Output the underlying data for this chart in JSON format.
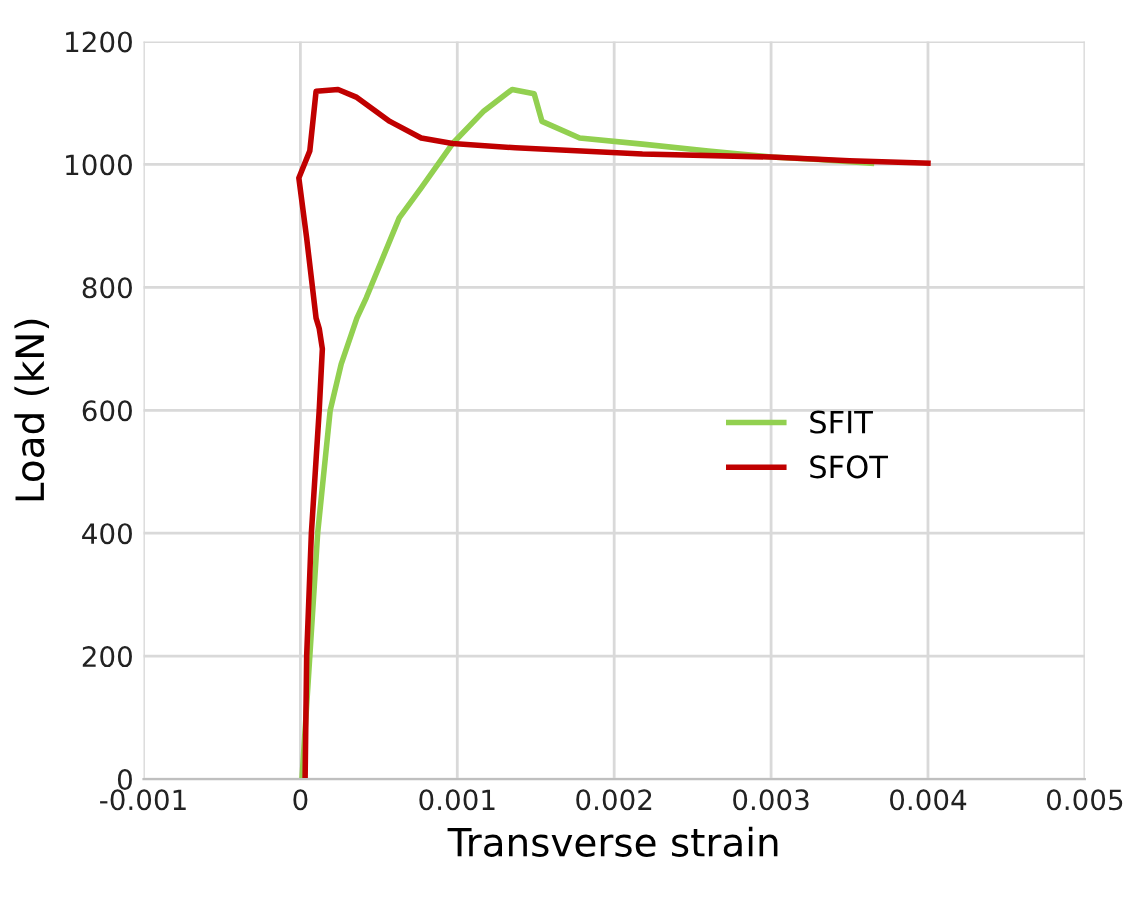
{
  "chart_data": {
    "type": "line",
    "xlabel": "Transverse strain",
    "ylabel": "Load (kN)",
    "xlim": [
      -0.001,
      0.005
    ],
    "xticks": [
      -0.001,
      0,
      0.001,
      0.002,
      0.003,
      0.004,
      0.005
    ],
    "ylim": [
      0,
      1200
    ],
    "yticks": [
      0,
      200,
      400,
      600,
      800,
      1000,
      1200
    ],
    "grid": true,
    "legend": "right",
    "marker": "none",
    "line_style": "solid",
    "series": [
      {
        "name": "SFIT",
        "color": "#92d050",
        "x": [
          1e-05,
          6e-05,
          0.00011,
          0.00019,
          0.00026,
          0.00036,
          0.00042,
          0.00063,
          0.00077,
          0.00097,
          0.00117,
          0.00135,
          0.00149,
          0.00154,
          0.00178,
          0.00218,
          0.0026,
          0.003,
          0.0033,
          0.00364
        ],
        "values": [
          0,
          200,
          400,
          600,
          675,
          750,
          783,
          913,
          962,
          1034,
          1087,
          1122,
          1115,
          1070,
          1043,
          1033,
          1022,
          1012,
          1008,
          1002
        ]
      },
      {
        "name": "SFOT",
        "color": "#c00000",
        "x": [
          3e-05,
          4e-05,
          7e-05,
          0.00012,
          0.00014,
          0.00012,
          0.0001,
          4e-05,
          -1e-05,
          6e-05,
          0.0001,
          0.00024,
          0.00036,
          0.00057,
          0.00077,
          0.00097,
          0.00137,
          0.00218,
          0.003,
          0.0035,
          0.004
        ],
        "values": [
          0,
          200,
          400,
          600,
          700,
          733,
          750,
          880,
          978,
          1022,
          1119,
          1122,
          1109,
          1070,
          1043,
          1034,
          1027,
          1017,
          1012,
          1006,
          1002
        ]
      }
    ]
  }
}
